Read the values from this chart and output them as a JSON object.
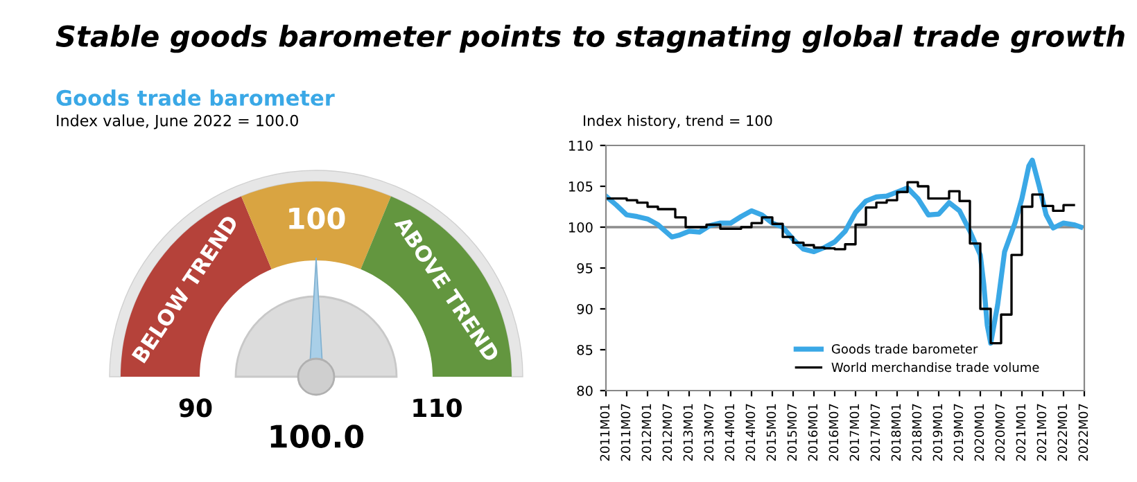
{
  "chart_data": [
    {
      "type": "donut",
      "title": "Stable goods barometer points to stagnating global trade growth",
      "subtitle": "Goods trade barometer",
      "annotations": [
        "Index value, June 2022 = 100.0",
        "90",
        "110",
        "100.0"
      ],
      "categories": [
        "BELOW TREND",
        "100",
        "ABOVE TREND"
      ],
      "values": [
        37.5,
        25,
        37.5
      ],
      "colors": [
        "#b5423a",
        "#d9a441",
        "#63963f"
      ],
      "needle": "100"
    },
    {
      "type": "line",
      "subtitle": "Index history, trend = 100",
      "legend": "bottom right",
      "grid": false,
      "ylim": [
        80,
        110
      ],
      "yticks": [
        80,
        85,
        90,
        95,
        100,
        105,
        110
      ],
      "xlim": [
        "2011-01",
        "2022-07"
      ],
      "xticks": [
        {
          "value": "2011-01",
          "label": "2011M01"
        },
        {
          "value": "2011-07",
          "label": "2011M07"
        },
        {
          "value": "2012-01",
          "label": "2012M01"
        },
        {
          "value": "2012-07",
          "label": "2012M07"
        },
        {
          "value": "2013-01",
          "label": "2013M01"
        },
        {
          "value": "2013-07",
          "label": "2013M07"
        },
        {
          "value": "2014-01",
          "label": "2014M01"
        },
        {
          "value": "2014-07",
          "label": "2014M07"
        },
        {
          "value": "2015-01",
          "label": "2015M01"
        },
        {
          "value": "2015-07",
          "label": "2015M07"
        },
        {
          "value": "2016-01",
          "label": "2016M01"
        },
        {
          "value": "2016-07",
          "label": "2016M07"
        },
        {
          "value": "2017-01",
          "label": "2017M01"
        },
        {
          "value": "2017-07",
          "label": "2017M07"
        },
        {
          "value": "2018-01",
          "label": "2018M01"
        },
        {
          "value": "2018-07",
          "label": "2018M07"
        },
        {
          "value": "2019-01",
          "label": "2019M01"
        },
        {
          "value": "2019-07",
          "label": "2019M07"
        },
        {
          "value": "2020-01",
          "label": "2020M01"
        },
        {
          "value": "2020-07",
          "label": "2020M07"
        },
        {
          "value": "2021-01",
          "label": "2021M01"
        },
        {
          "value": "2021-07",
          "label": "2021M07"
        },
        {
          "value": "2022-01",
          "label": "2022M01"
        },
        {
          "value": "2022-07",
          "label": "2022M07"
        }
      ],
      "ref_lines": [
        {
          "axis": "y",
          "value": 100,
          "color": "#8c8c8c"
        }
      ],
      "series": [
        {
          "name": "Goods trade barometer",
          "color": "#3aa8e6",
          "type": "line",
          "x": [
            "2011-01",
            "2011-04",
            "2011-07",
            "2011-10",
            "2012-01",
            "2012-04",
            "2012-08",
            "2012-10",
            "2013-01",
            "2013-04",
            "2013-07",
            "2013-10",
            "2014-01",
            "2014-04",
            "2014-07",
            "2014-10",
            "2015-01",
            "2015-04",
            "2015-07",
            "2015-10",
            "2016-01",
            "2016-04",
            "2016-07",
            "2016-10",
            "2017-01",
            "2017-04",
            "2017-07",
            "2017-10",
            "2018-01",
            "2018-04",
            "2018-07",
            "2018-10",
            "2019-01",
            "2019-04",
            "2019-07",
            "2019-10",
            "2020-01",
            "2020-02",
            "2020-03",
            "2020-04",
            "2020-06",
            "2020-08",
            "2020-11",
            "2021-01",
            "2021-03",
            "2021-04",
            "2021-06",
            "2021-08",
            "2021-10",
            "2022-01",
            "2022-04",
            "2022-06"
          ],
          "values": [
            103.8,
            102.7,
            101.5,
            101.3,
            101.0,
            100.3,
            98.8,
            99.0,
            99.5,
            99.4,
            100.2,
            100.5,
            100.5,
            101.3,
            102.0,
            101.5,
            100.5,
            100.0,
            98.5,
            97.3,
            97.0,
            97.5,
            98.2,
            99.5,
            101.8,
            103.2,
            103.7,
            103.8,
            104.3,
            104.8,
            103.5,
            101.5,
            101.6,
            103.0,
            102.0,
            99.5,
            96.6,
            93.0,
            88.0,
            85.8,
            90.5,
            97.0,
            100.5,
            103.5,
            107.5,
            108.2,
            105.0,
            101.5,
            99.9,
            100.5,
            100.3,
            100.0
          ]
        },
        {
          "name": "World merchandise trade volume",
          "color": "#000000",
          "type": "step",
          "x": [
            "2011-01",
            "2011-07",
            "2011-10",
            "2012-01",
            "2012-04",
            "2012-07",
            "2012-09",
            "2012-12",
            "2013-03",
            "2013-06",
            "2013-10",
            "2014-01",
            "2014-04",
            "2014-07",
            "2014-10",
            "2015-01",
            "2015-04",
            "2015-07",
            "2015-10",
            "2016-01",
            "2016-04",
            "2016-07",
            "2016-10",
            "2017-01",
            "2017-04",
            "2017-07",
            "2017-10",
            "2018-01",
            "2018-04",
            "2018-07",
            "2018-10",
            "2019-01",
            "2019-04",
            "2019-07",
            "2019-10",
            "2020-01",
            "2020-04",
            "2020-07",
            "2020-10",
            "2021-01",
            "2021-04",
            "2021-07",
            "2021-10",
            "2022-01",
            "2022-04"
          ],
          "values": [
            103.5,
            103.3,
            103.0,
            102.5,
            102.2,
            102.2,
            101.2,
            100.0,
            100.0,
            100.3,
            99.8,
            99.8,
            100.0,
            100.5,
            101.2,
            100.4,
            98.8,
            98.1,
            97.8,
            97.5,
            97.4,
            97.3,
            97.9,
            100.3,
            102.4,
            103.0,
            103.3,
            104.3,
            105.5,
            105.0,
            103.5,
            103.5,
            104.4,
            103.2,
            98.0,
            90.0,
            85.8,
            89.3,
            96.6,
            102.5,
            104.0,
            102.6,
            102.0,
            102.7,
            102.7
          ]
        }
      ]
    }
  ]
}
